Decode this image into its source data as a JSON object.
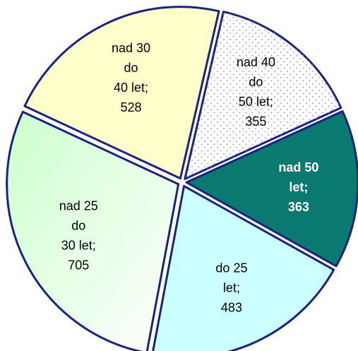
{
  "chart_data": {
    "type": "pie",
    "categories": [
      "nad 40\ndo\n50 let;",
      "nad 50\nlet;",
      "do 25\nlet;",
      "nad 25\ndo\n30 let;",
      "nad 30\ndo\n40 let;"
    ],
    "values": [
      355,
      363,
      483,
      705,
      528
    ],
    "colors": [
      "#ffffff",
      "#0a7a70",
      "#ccffff",
      "#ccffcc",
      "#ffffcc"
    ]
  }
}
